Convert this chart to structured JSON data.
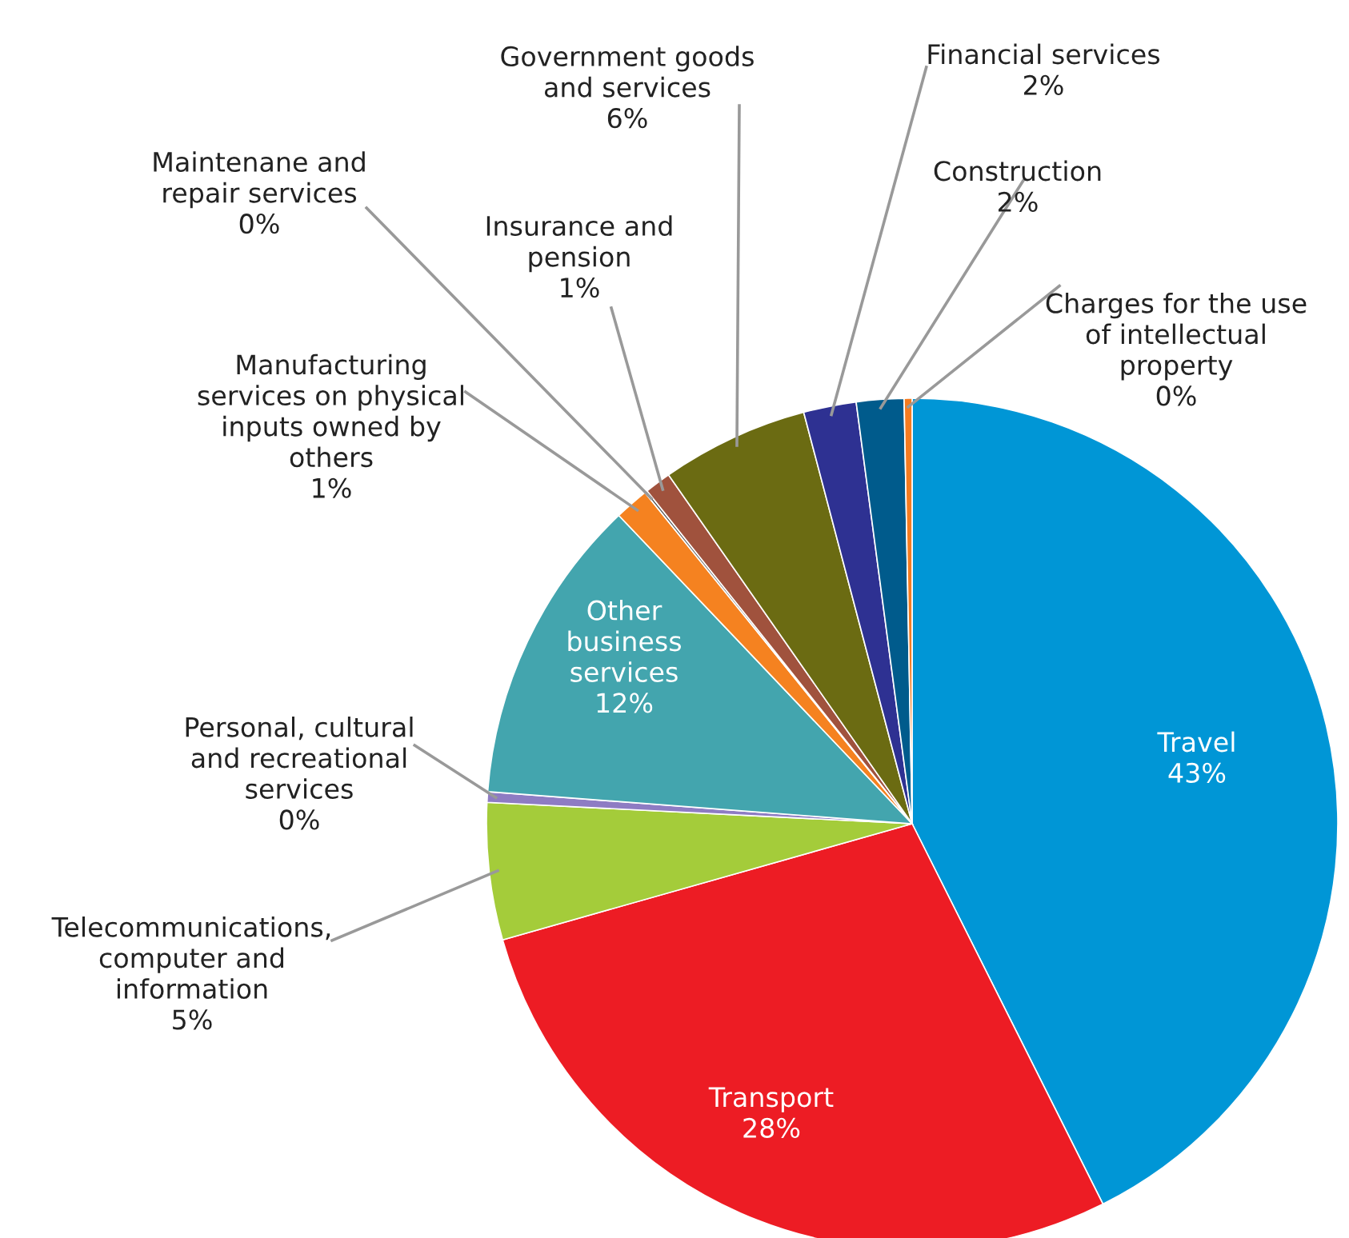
{
  "chart_data": {
    "type": "pie",
    "categories": [
      "Travel",
      "Transport",
      "Telecommunications,\ncomputer and\ninformation",
      "Personal, cultural\nand recreational\nservices",
      "Other\nbusiness\nservices",
      "Manufacturing\nservices on physical\ninputs owned by\nothers",
      "Maintenane and\nrepair services",
      "Insurance and\npension",
      "Government goods\nand services",
      "Financial services",
      "Construction",
      "Charges for the use\nof intellectual\nproperty"
    ],
    "values": [
      42.6,
      28.0,
      5.2,
      0.4,
      11.7,
      1.3,
      0.1,
      1.0,
      5.6,
      2.0,
      1.8,
      0.3
    ],
    "value_labels": [
      "43%",
      "28%",
      "5%",
      "0%",
      "12%",
      "1%",
      "0%",
      "1%",
      "6%",
      "2%",
      "2%",
      "0%"
    ],
    "colors": [
      "#0096d6",
      "#ed1c24",
      "#a4cc3a",
      "#8e7cc3",
      "#43a5ae",
      "#f58220",
      "#555555",
      "#a0523d",
      "#6b6b12",
      "#2e3192",
      "#005b8c",
      "#f47b20"
    ]
  }
}
